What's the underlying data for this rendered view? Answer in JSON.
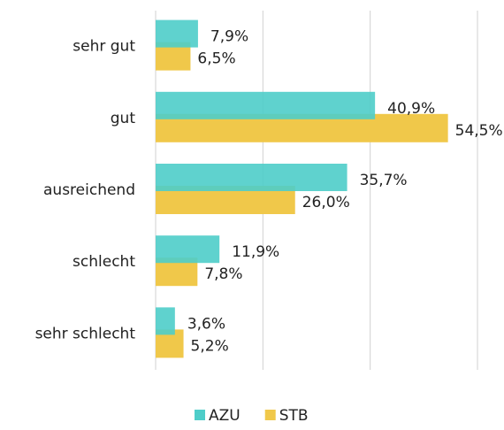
{
  "chart_data": {
    "type": "bar",
    "orientation": "horizontal",
    "categories": [
      "sehr gut",
      "gut",
      "ausreichend",
      "schlecht",
      "sehr schlecht"
    ],
    "series": [
      {
        "name": "AZU",
        "color": "#4ecdc9",
        "values": [
          7.9,
          40.9,
          35.7,
          11.9,
          3.6
        ],
        "value_labels": [
          "7,9%",
          "40,9%",
          "35,7%",
          "11,9%",
          "3,6%"
        ]
      },
      {
        "name": "STB",
        "color": "#f0c84a",
        "values": [
          6.5,
          54.5,
          26.0,
          7.8,
          5.2
        ],
        "value_labels": [
          "6,5%",
          "54,5%",
          "26,0%",
          "7,8%",
          "5,2%"
        ]
      }
    ],
    "xlim": [
      0,
      60
    ],
    "xticks": [
      0,
      20,
      40,
      60
    ],
    "grid": true,
    "legend": "bottom"
  }
}
